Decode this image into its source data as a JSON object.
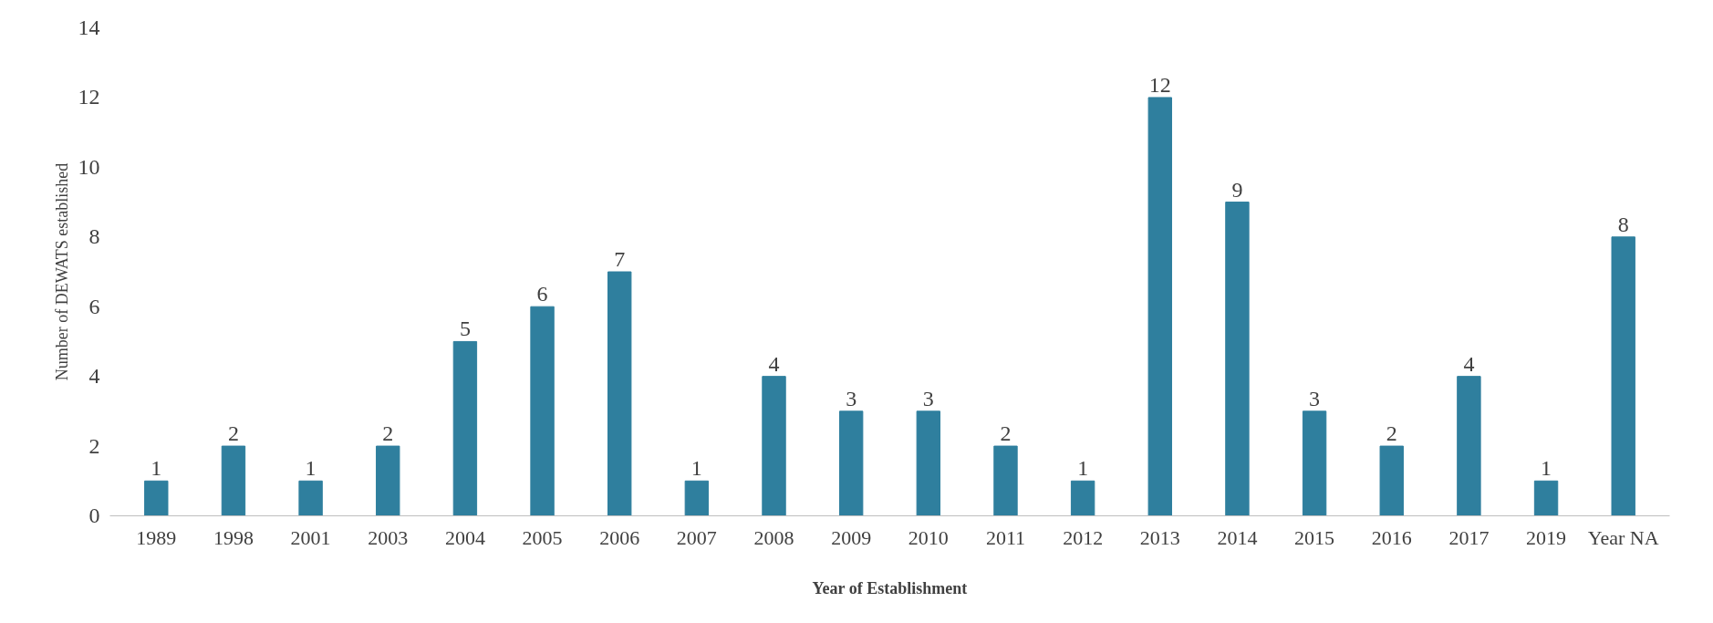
{
  "chart_data": {
    "type": "bar",
    "xlabel": "Year of Establishment",
    "ylabel": "Number of DEWATS established",
    "categories": [
      "1989",
      "1998",
      "2001",
      "2003",
      "2004",
      "2005",
      "2006",
      "2007",
      "2008",
      "2009",
      "2010",
      "2011",
      "2012",
      "2013",
      "2014",
      "2015",
      "2016",
      "2017",
      "2019",
      "Year NA"
    ],
    "values": [
      1,
      2,
      1,
      2,
      5,
      6,
      7,
      1,
      4,
      3,
      3,
      2,
      1,
      12,
      9,
      3,
      2,
      4,
      1,
      8
    ],
    "color": "#2f7f9e",
    "ylim": [
      0,
      14
    ],
    "yticks": [
      0,
      2,
      4,
      6,
      8,
      10,
      12,
      14
    ],
    "grid": false,
    "data_labels": true
  }
}
